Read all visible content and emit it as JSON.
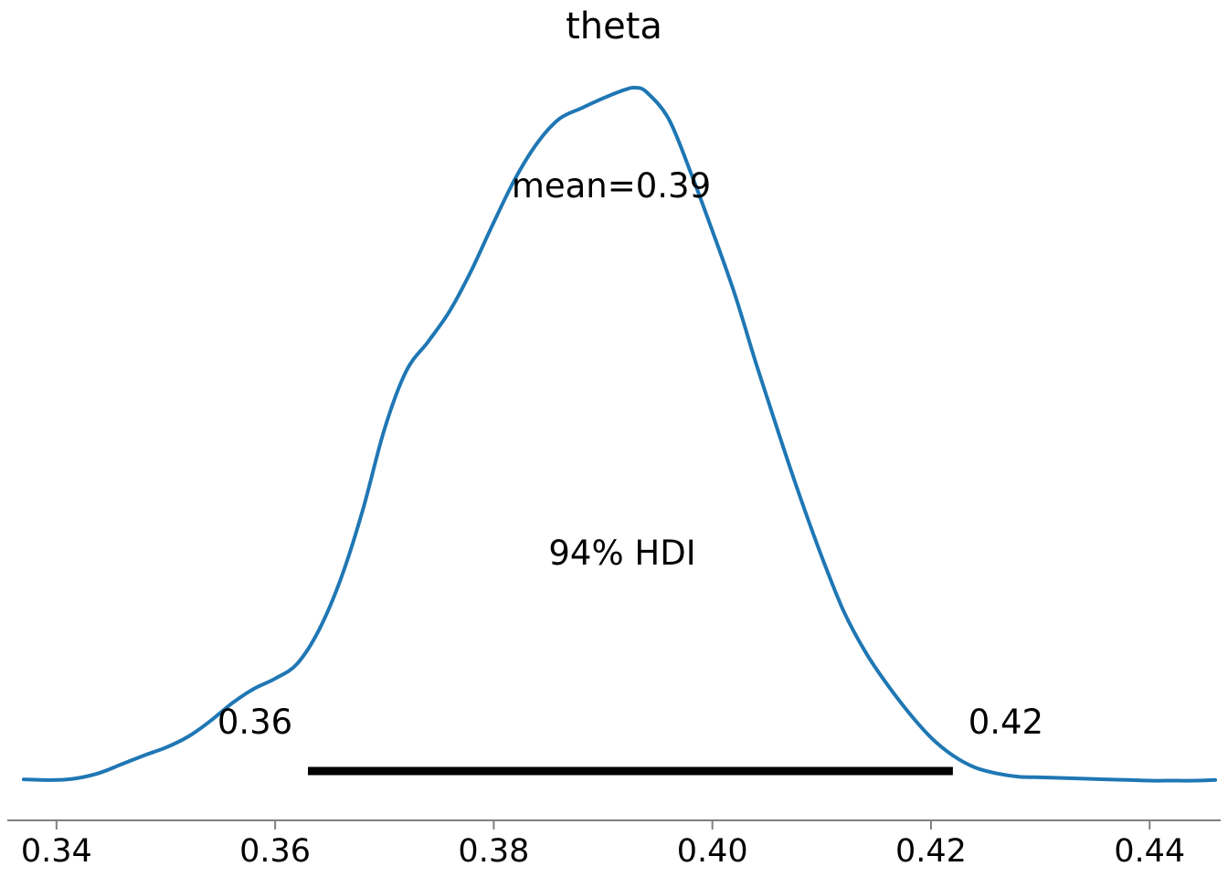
{
  "chart_data": {
    "type": "line",
    "title": "theta",
    "xlabel": "",
    "ylabel": "",
    "xlim": [
      0.3355,
      0.4465
    ],
    "ylim": [
      0,
      1
    ],
    "grid": false,
    "x_ticks": [
      0.34,
      0.36,
      0.38,
      0.4,
      0.42,
      0.44
    ],
    "x_tick_labels": [
      "0.34",
      "0.36",
      "0.38",
      "0.40",
      "0.42",
      "0.44"
    ],
    "series": [
      {
        "color": "#1f77b4",
        "x": [
          0.337,
          0.34,
          0.342,
          0.344,
          0.346,
          0.348,
          0.35,
          0.352,
          0.354,
          0.356,
          0.358,
          0.36,
          0.362,
          0.364,
          0.366,
          0.368,
          0.37,
          0.372,
          0.374,
          0.376,
          0.378,
          0.38,
          0.382,
          0.384,
          0.386,
          0.388,
          0.39,
          0.392,
          0.393,
          0.394,
          0.396,
          0.398,
          0.4,
          0.402,
          0.404,
          0.406,
          0.408,
          0.41,
          0.412,
          0.414,
          0.416,
          0.418,
          0.42,
          0.422,
          0.424,
          0.426,
          0.428,
          0.43,
          0.432,
          0.434,
          0.436,
          0.438,
          0.44,
          0.442,
          0.444,
          0.446
        ],
        "y": [
          0.004,
          0.003,
          0.006,
          0.014,
          0.027,
          0.04,
          0.052,
          0.068,
          0.091,
          0.118,
          0.14,
          0.156,
          0.178,
          0.229,
          0.306,
          0.409,
          0.532,
          0.62,
          0.664,
          0.711,
          0.773,
          0.844,
          0.911,
          0.964,
          1.0,
          1.016,
          1.031,
          1.044,
          1.047,
          1.04,
          1.0,
          0.92,
          0.831,
          0.738,
          0.631,
          0.529,
          0.431,
          0.34,
          0.258,
          0.196,
          0.147,
          0.104,
          0.067,
          0.04,
          0.022,
          0.013,
          0.008,
          0.007,
          0.006,
          0.005,
          0.004,
          0.003,
          0.002,
          0.002,
          0.002,
          0.003
        ]
      }
    ],
    "mean_label": "mean=0.39",
    "hdi": {
      "label": "94% HDI",
      "low": 0.363,
      "high": 0.422,
      "low_label": "0.36",
      "high_label": "0.42",
      "color": "#000000"
    }
  }
}
